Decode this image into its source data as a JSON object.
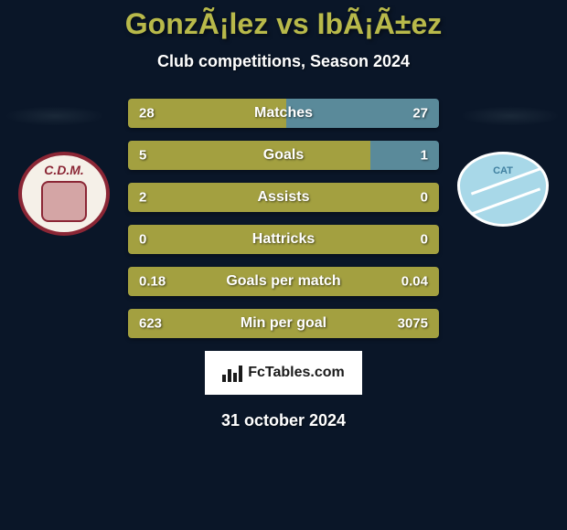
{
  "title": "GonzÃ¡lez vs IbÃ¡Ã±ez",
  "subtitle": "Club competitions, Season 2024",
  "date": "31 october 2024",
  "fctables_label": "FcTables.com",
  "colors": {
    "left_bar": "#a3a040",
    "right_bar": "#5a8a9a",
    "background": "#0a1628",
    "title_color": "#b8b94a"
  },
  "team_left": {
    "badge_text": "C.D.M."
  },
  "team_right": {
    "badge_text": "CAT"
  },
  "stats": [
    {
      "label": "Matches",
      "left_value": "28",
      "right_value": "27",
      "left_pct": 51,
      "right_pct": 49
    },
    {
      "label": "Goals",
      "left_value": "5",
      "right_value": "1",
      "left_pct": 78,
      "right_pct": 22
    },
    {
      "label": "Assists",
      "left_value": "2",
      "right_value": "0",
      "left_pct": 100,
      "right_pct": 0
    },
    {
      "label": "Hattricks",
      "left_value": "0",
      "right_value": "0",
      "left_pct": 100,
      "right_pct": 0
    },
    {
      "label": "Goals per match",
      "left_value": "0.18",
      "right_value": "0.04",
      "left_pct": 100,
      "right_pct": 0
    },
    {
      "label": "Min per goal",
      "left_value": "623",
      "right_value": "3075",
      "left_pct": 100,
      "right_pct": 0
    }
  ]
}
